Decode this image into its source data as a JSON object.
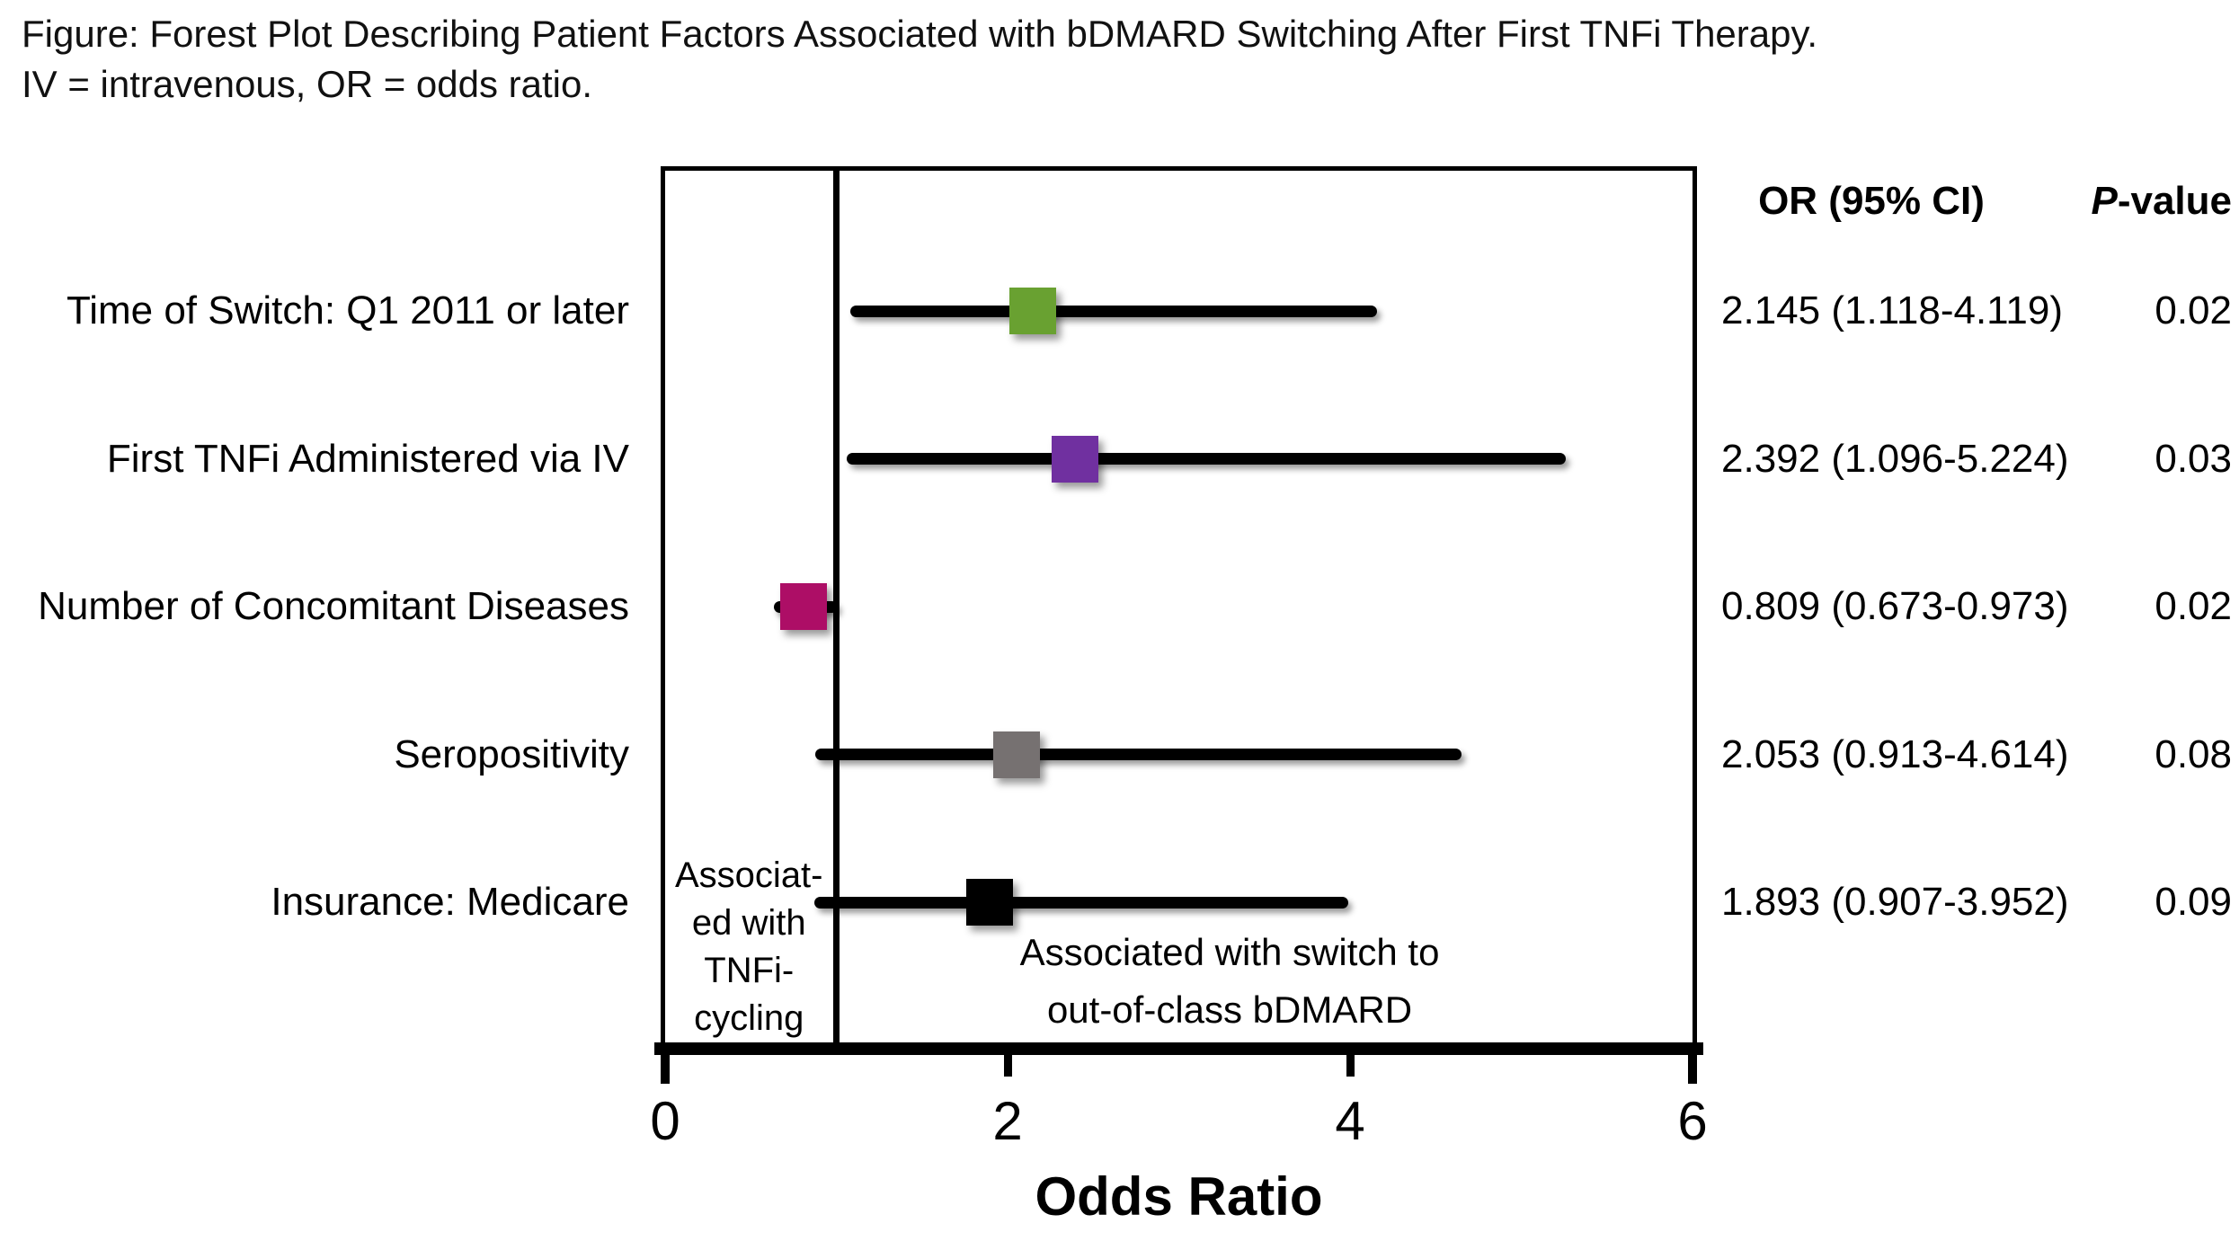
{
  "chart_data": {
    "type": "forest",
    "title": "Figure: Forest Plot Describing Patient Factors Associated with bDMARD Switching After First TNFi Therapy.",
    "subtitle": "IV = intravenous, OR = odds ratio.",
    "xlabel": "Odds Ratio",
    "xlim": [
      0,
      6
    ],
    "xticks": [
      0,
      2,
      4,
      6
    ],
    "reference_line": 1,
    "grid": false,
    "columns": {
      "or_header": "OR (95% CI)",
      "p_header": {
        "italic": "P",
        "rest": "-value"
      }
    },
    "annotations": {
      "left_of_reference": [
        "Associat-",
        "ed with",
        "TNFi-",
        "cycling"
      ],
      "right_of_reference": [
        "Associated with switch to",
        "out-of-class bDMARD"
      ]
    },
    "rows": [
      {
        "label": "Time of Switch: Q1 2011 or later",
        "or": 2.145,
        "ci_low": 1.118,
        "ci_high": 4.119,
        "or_text": "2.145 (1.118-4.119)",
        "p": "0.02",
        "color": "#69A131"
      },
      {
        "label": "First TNFi Administered via IV",
        "or": 2.392,
        "ci_low": 1.096,
        "ci_high": 5.224,
        "or_text": "2.392 (1.096-5.224)",
        "p": "0.03",
        "color": "#7030A0"
      },
      {
        "label": "Number of Concomitant Diseases",
        "or": 0.809,
        "ci_low": 0.673,
        "ci_high": 0.973,
        "or_text": "0.809 (0.673-0.973)",
        "p": "0.02",
        "color": "#AD0E66"
      },
      {
        "label": "Seropositivity",
        "or": 2.053,
        "ci_low": 0.913,
        "ci_high": 4.614,
        "or_text": "2.053 (0.913-4.614)",
        "p": "0.08",
        "color": "#767171"
      },
      {
        "label": "Insurance: Medicare",
        "or": 1.893,
        "ci_low": 0.907,
        "ci_high": 3.952,
        "or_text": "1.893 (0.907-3.952)",
        "p": "0.09",
        "color": "#000000"
      }
    ]
  }
}
